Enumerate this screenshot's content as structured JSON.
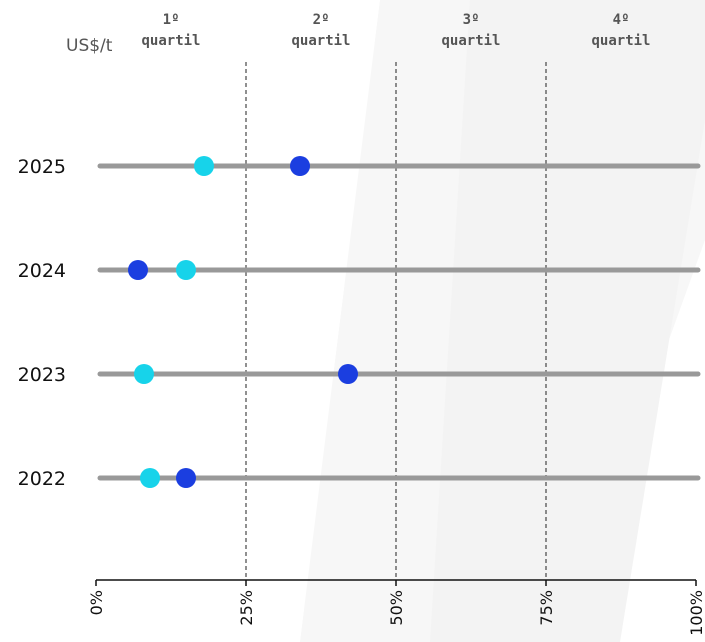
{
  "chart_data": {
    "type": "scatter",
    "unit_label": "US$/t",
    "quartiles": [
      {
        "line1": "1º",
        "line2": "quartil"
      },
      {
        "line1": "2º",
        "line2": "quartil"
      },
      {
        "line1": "3º",
        "line2": "quartil"
      },
      {
        "line1": "4º",
        "line2": "quartil"
      }
    ],
    "x_ticks": [
      "0%",
      "25%",
      "50%",
      "75%",
      "100%"
    ],
    "xlim": [
      0,
      100
    ],
    "quartile_boundaries": [
      25,
      50,
      75
    ],
    "categories": [
      "2025",
      "2024",
      "2023",
      "2022"
    ],
    "series": [
      {
        "color": "#1b3ee0",
        "values": [
          34,
          7,
          42,
          15
        ]
      },
      {
        "color": "#17d3ea",
        "values": [
          18,
          15,
          8,
          9
        ]
      }
    ],
    "track_color": "#999999",
    "grid": false
  }
}
